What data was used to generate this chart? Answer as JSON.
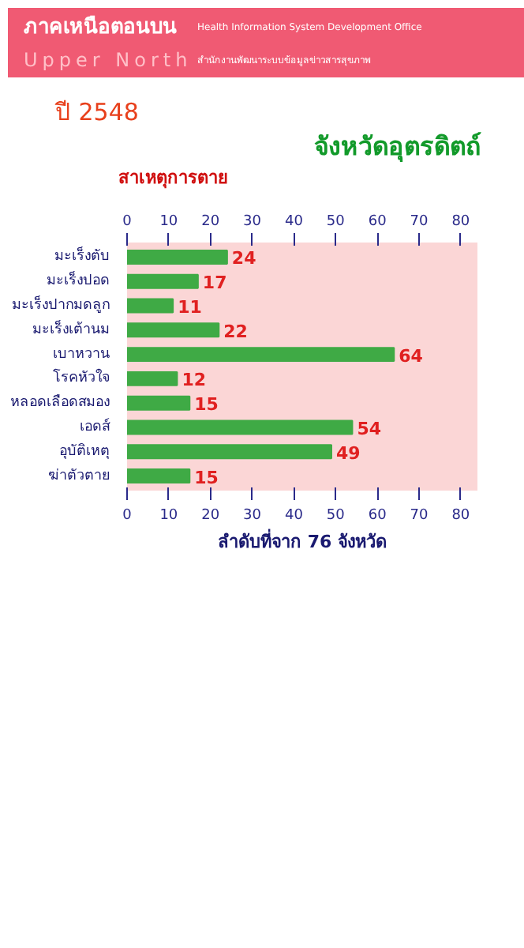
{
  "chart_data": {
    "type": "bar",
    "orientation": "horizontal",
    "title": "จังหวัดอุตรดิตถ์",
    "subtitle": "ปี 2548",
    "ylabel": "สาเหตุการตาย",
    "xlabel": "ลำดับที่จาก 76 จังหวัด",
    "annotations": [
      "ภาคเหนือตอนบน",
      "Upper North",
      "Health Information System Development Office",
      "สำนักงานพัฒนาระบบข้อมูลข่าวสารสุขภาพ"
    ],
    "categories": [
      "มะเร็งตับ",
      "มะเร็งปอด",
      "มะเร็งปากมดลูก",
      "มะเร็งเต้านม",
      "เบาหวาน",
      "โรคหัวใจ",
      "หลอดเลือดสมอง",
      "เอดส์",
      "อุบัติเหตุ",
      "ฆ่าตัวตาย"
    ],
    "values": [
      24,
      17,
      11,
      22,
      64,
      12,
      15,
      54,
      49,
      15
    ],
    "color": "#3faa45",
    "data_labels": true,
    "grid": false,
    "xlim": [
      0,
      84
    ],
    "xticks": [
      0,
      10,
      20,
      30,
      40,
      50,
      60,
      70,
      80
    ],
    "x2lim": [
      0,
      84
    ],
    "x2ticks": [
      0,
      10,
      20,
      30,
      40,
      50,
      60,
      70,
      80
    ]
  }
}
